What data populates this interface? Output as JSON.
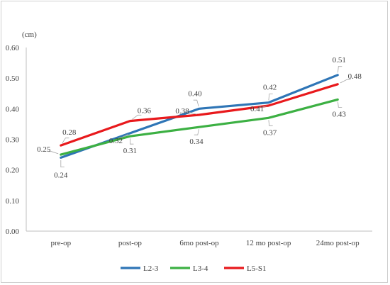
{
  "chart_data": {
    "type": "line",
    "unit_label": "(cm)",
    "categories": [
      "pre-op",
      "post-op",
      "6mo post-op",
      "12 mo post-op",
      "24mo post-op"
    ],
    "ylim": [
      0,
      0.6
    ],
    "yticks": [
      "0.00",
      "0.10",
      "0.20",
      "0.30",
      "0.40",
      "0.50",
      "0.60"
    ],
    "ytick_values": [
      0,
      0.1,
      0.2,
      0.3,
      0.4,
      0.5,
      0.6
    ],
    "grid": false,
    "legend_position": "bottom",
    "series": [
      {
        "name": "L2-3",
        "color": "#2e75b6",
        "values": [
          0.24,
          0.32,
          0.4,
          0.42,
          0.51
        ],
        "labels": [
          "0.24",
          "0.32",
          "0.40",
          "0.42",
          "0.51"
        ]
      },
      {
        "name": "L3-4",
        "color": "#3cb043",
        "values": [
          0.25,
          0.31,
          0.34,
          0.37,
          0.43
        ],
        "labels": [
          "0.25",
          "0.31",
          "0.34",
          "0.37",
          "0.43"
        ]
      },
      {
        "name": "L5-S1",
        "color": "#e8191c",
        "values": [
          0.28,
          0.36,
          0.38,
          0.41,
          0.48
        ],
        "labels": [
          "0.28",
          "0.36",
          "0.38",
          "0.41",
          "0.48"
        ]
      }
    ]
  }
}
